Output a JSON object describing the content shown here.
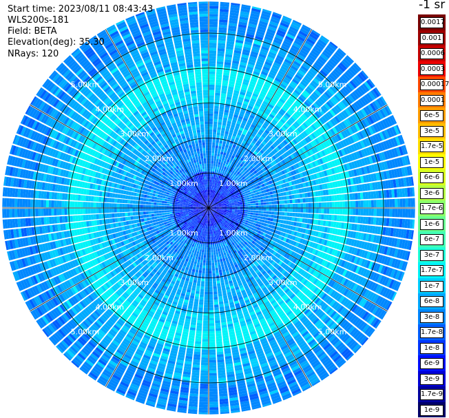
{
  "info": {
    "start_time": "Start time: 2023/08/11 08:43:43",
    "instrument": "WLS200s-181",
    "field": "Field: BETA",
    "elevation": "Elevation(deg): 35.30",
    "nrays": "NRays: 120"
  },
  "colorbar": {
    "units": "-1 sr",
    "entries": [
      {
        "label": "0.0017",
        "color": "#7a0000"
      },
      {
        "label": "0.001",
        "color": "#9e0000"
      },
      {
        "label": "0.0006",
        "color": "#c60000"
      },
      {
        "label": "0.0003",
        "color": "#ee0000"
      },
      {
        "label": "0.00017",
        "color": "#ff4a00"
      },
      {
        "label": "0.0001",
        "color": "#ff7e00"
      },
      {
        "label": "6e-5",
        "color": "#ff9e00"
      },
      {
        "label": "3e-5",
        "color": "#ffbe00"
      },
      {
        "label": "1.7e-5",
        "color": "#ffdf00"
      },
      {
        "label": "1e-5",
        "color": "#ffff00"
      },
      {
        "label": "6e-6",
        "color": "#d8ff20"
      },
      {
        "label": "3e-6",
        "color": "#b4ff44"
      },
      {
        "label": "1.7e-6",
        "color": "#8cff6c"
      },
      {
        "label": "1e-6",
        "color": "#68ff90"
      },
      {
        "label": "6e-7",
        "color": "#44ffb4"
      },
      {
        "label": "3e-7",
        "color": "#20ffd8"
      },
      {
        "label": "1.7e-7",
        "color": "#00f4f8"
      },
      {
        "label": "1e-7",
        "color": "#00d0ff"
      },
      {
        "label": "6e-8",
        "color": "#00aaff"
      },
      {
        "label": "3e-8",
        "color": "#0088ff"
      },
      {
        "label": "1.7e-8",
        "color": "#0060ff"
      },
      {
        "label": "1e-8",
        "color": "#0038ff"
      },
      {
        "label": "6e-9",
        "color": "#0010ff"
      },
      {
        "label": "3e-9",
        "color": "#0000d8"
      },
      {
        "label": "1.7e-9",
        "color": "#0000a0"
      },
      {
        "label": "1e-9",
        "color": "#000068"
      }
    ]
  },
  "chart_data": {
    "type": "heatmap",
    "projection": "polar PPI",
    "field": "BETA",
    "n_rays": 120,
    "range_rings_km": [
      1,
      2,
      3,
      4,
      5
    ],
    "range_max_km": 5.9,
    "range_gate_km": 0.075,
    "ring_labels": [
      "1.00km",
      "2.00km",
      "3.00km",
      "4.00km",
      "5.00km"
    ],
    "azimuth_spokes_deg": [
      0,
      30,
      60,
      90,
      120,
      150,
      180,
      210,
      240,
      270,
      300,
      330
    ],
    "color_scale": "log",
    "value_range": [
      "1e-9",
      "0.0017"
    ],
    "dominant_range_profile": [
      {
        "range_km": 0.0,
        "level": "6e-9"
      },
      {
        "range_km": 0.5,
        "level": "1e-8"
      },
      {
        "range_km": 1.0,
        "level": "3e-8"
      },
      {
        "range_km": 2.0,
        "level": "6e-8"
      },
      {
        "range_km": 3.0,
        "level": "1e-7"
      },
      {
        "range_km": 3.5,
        "level": "1.7e-7"
      },
      {
        "range_km": 4.0,
        "level": "6e-8"
      },
      {
        "range_km": 5.0,
        "level": "3e-8"
      },
      {
        "range_km": 5.9,
        "level": "6e-8"
      }
    ]
  }
}
